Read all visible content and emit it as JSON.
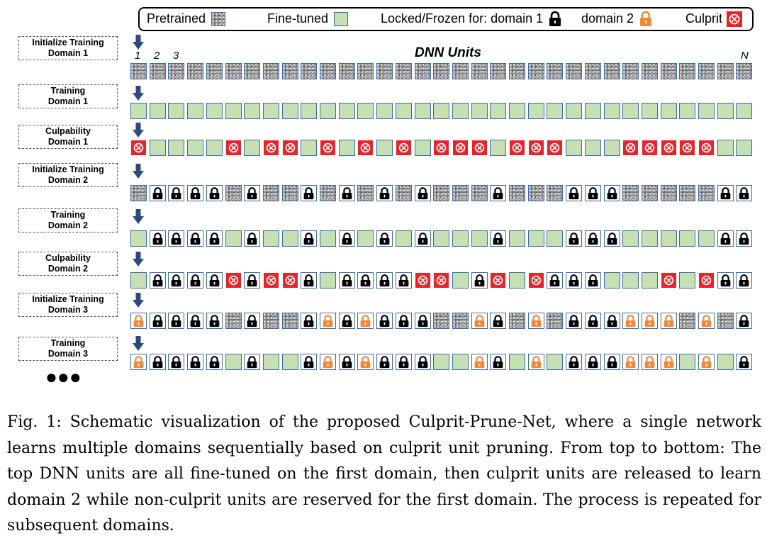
{
  "legend": {
    "pretrained": "Pretrained",
    "fine_tuned": "Fine-tuned",
    "locked_for": "Locked/Frozen for: domain 1",
    "domain2": "domain 2",
    "culprit": "Culprit"
  },
  "diagram": {
    "title": "DNN Units",
    "col_first": "1",
    "col_second": "2",
    "col_third": "3",
    "col_last": "N",
    "ellipsis": "●●●"
  },
  "colors": {
    "fine_tuned": "#c6e0b4",
    "culprit": "#e8232a",
    "lock_domain1": "#000000",
    "lock_domain2": "#f0883a",
    "unit_border": "#3b6aa8"
  },
  "unit_legend": {
    "P": "pretrained",
    "F": "fine-tuned",
    "C": "culprit",
    "L": "locked-domain-1",
    "O": "locked-domain-2"
  },
  "rows": [
    {
      "stage_line1": "Initialize Training",
      "stage_line2": "Domain 1",
      "units": "PPPPPPPPPPPPPPPPPPPPPPPPPPPPPPPPP"
    },
    {
      "stage_line1": "Training",
      "stage_line2": "Domain 1",
      "units": "FFFFFFFFFFFFFFFFFFFFFFFFFFFFFFFFF"
    },
    {
      "stage_line1": "Culpability",
      "stage_line2": "Domain 1",
      "units": "CFFFFCFCCFCFCFCFCCCFCCCFFFCCCCCFF"
    },
    {
      "stage_line1": "Initialize Training",
      "stage_line2": "Domain 2",
      "units": "PLLLLPLPPLPLPLPLPPPLPPPLLLPPPPPLL"
    },
    {
      "stage_line1": "Training",
      "stage_line2": "Domain 2",
      "units": "FLLLLFLFFLFLFLFLFFFLFFFLLLFFFFFLL"
    },
    {
      "stage_line1": "Culpability",
      "stage_line2": "Domain 2",
      "units": "FLLLLCLCCLFLLLLCCFLCFCLLLFFFCFCLL"
    },
    {
      "stage_line1": "Initialize Training",
      "stage_line2": "Domain 3",
      "units": "OLLLLPLPPLOLOLLLPPOLPOPLLLOOOPOPL"
    },
    {
      "stage_line1": "Training",
      "stage_line2": "Domain 3",
      "units": "OLLLLFLFFLOLOLLLFFOLFOFLLLOOOFOFL"
    }
  ],
  "caption": "Fig. 1: Schematic visualization of the proposed Culprit-Prune-Net, where a single network learns multiple domains sequentially based on culprit unit pruning. From top to bottom: The top DNN units are all fine-tuned on the first domain, then culprit units are released to learn domain 2 while non-culprit units are reserved for the first domain. The process is repeated for subsequent domains."
}
